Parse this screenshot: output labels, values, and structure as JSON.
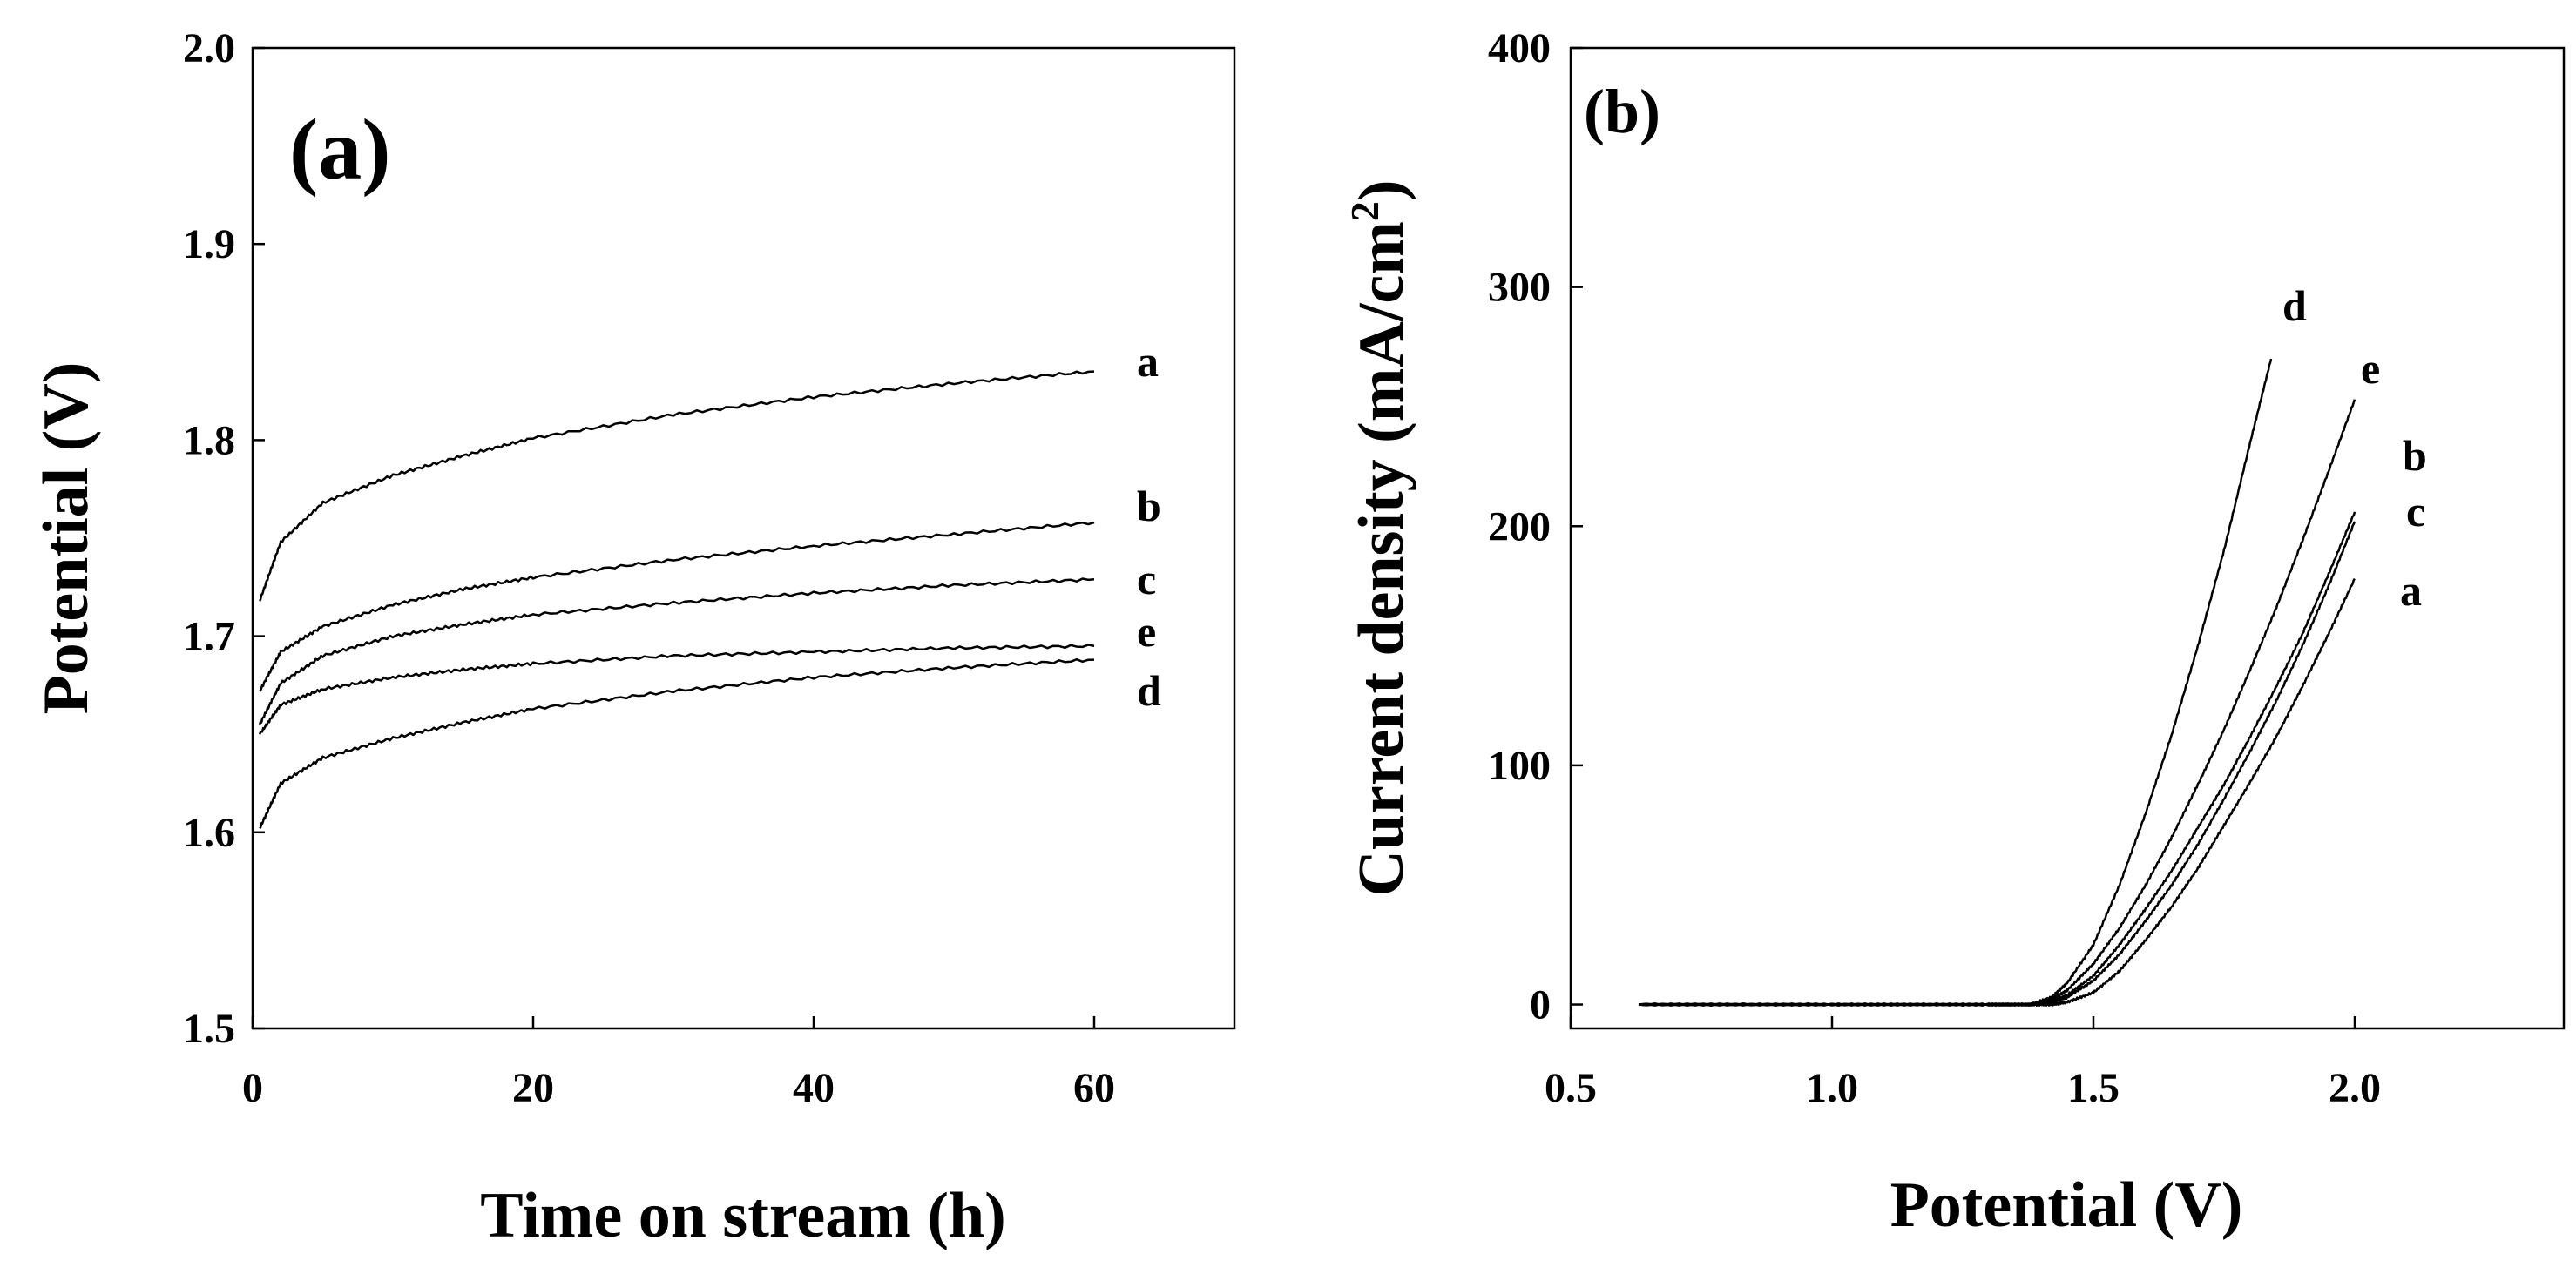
{
  "chart_data": [
    {
      "type": "line",
      "panel_label": "(a)",
      "xlabel": "Time on stream (h)",
      "ylabel": "Potential (V)",
      "xlim": [
        0,
        70
      ],
      "ylim": [
        1.5,
        2.0
      ],
      "xticks": [
        "0",
        "20",
        "40",
        "60"
      ],
      "yticks": [
        "1.5",
        "1.6",
        "1.7",
        "1.8",
        "1.9",
        "2.0"
      ],
      "series": [
        {
          "name": "a",
          "x": [
            0.5,
            2,
            5,
            10,
            15,
            20,
            30,
            40,
            50,
            60
          ],
          "y": [
            1.718,
            1.748,
            1.768,
            1.782,
            1.792,
            1.801,
            1.813,
            1.822,
            1.829,
            1.835
          ]
        },
        {
          "name": "b",
          "x": [
            0.5,
            2,
            5,
            10,
            15,
            20,
            30,
            40,
            50,
            60
          ],
          "y": [
            1.672,
            1.692,
            1.705,
            1.716,
            1.724,
            1.73,
            1.739,
            1.746,
            1.752,
            1.758
          ]
        },
        {
          "name": "c",
          "x": [
            0.5,
            2,
            5,
            10,
            15,
            20,
            30,
            40,
            50,
            60
          ],
          "y": [
            1.655,
            1.676,
            1.69,
            1.7,
            1.706,
            1.711,
            1.717,
            1.722,
            1.726,
            1.729
          ]
        },
        {
          "name": "e",
          "x": [
            0.5,
            2,
            5,
            10,
            15,
            20,
            30,
            40,
            50,
            60
          ],
          "y": [
            1.65,
            1.665,
            1.673,
            1.679,
            1.683,
            1.686,
            1.69,
            1.692,
            1.694,
            1.695
          ]
        },
        {
          "name": "d",
          "x": [
            0.5,
            2,
            5,
            10,
            15,
            20,
            30,
            40,
            50,
            60
          ],
          "y": [
            1.602,
            1.625,
            1.638,
            1.648,
            1.656,
            1.663,
            1.672,
            1.679,
            1.684,
            1.688
          ]
        }
      ]
    },
    {
      "type": "line",
      "panel_label": "(b)",
      "xlabel": "Potential (V)",
      "ylabel": "Current density (mA/cm",
      "ylabel_sup": "2",
      "ylabel_tail": ")",
      "xlim": [
        0.5,
        2.4
      ],
      "ylim": [
        -10,
        400
      ],
      "xticks": [
        "0.5",
        "1.0",
        "1.5",
        "2.0"
      ],
      "yticks": [
        "0",
        "100",
        "200",
        "300",
        "400"
      ],
      "series": [
        {
          "name": "d",
          "x": [
            0.63,
            1.0,
            1.3,
            1.38,
            1.42,
            1.45,
            1.5,
            1.55,
            1.6,
            1.65,
            1.7,
            1.75,
            1.8,
            1.84
          ],
          "y": [
            0,
            0,
            0,
            0,
            3,
            9,
            25,
            50,
            80,
            113,
            150,
            190,
            235,
            270
          ]
        },
        {
          "name": "e",
          "x": [
            0.63,
            1.0,
            1.3,
            1.38,
            1.42,
            1.45,
            1.5,
            1.55,
            1.6,
            1.65,
            1.7,
            1.75,
            1.8,
            1.85,
            1.9,
            1.95,
            2.0
          ],
          "y": [
            0,
            0,
            0,
            0,
            2,
            6,
            17,
            32,
            50,
            70,
            92,
            115,
            140,
            166,
            194,
            223,
            253
          ]
        },
        {
          "name": "b",
          "x": [
            0.63,
            1.0,
            1.3,
            1.38,
            1.42,
            1.45,
            1.5,
            1.55,
            1.6,
            1.65,
            1.7,
            1.75,
            1.8,
            1.85,
            1.9,
            1.95,
            2.0
          ],
          "y": [
            0,
            0,
            0,
            0,
            1,
            4,
            12,
            25,
            40,
            56,
            74,
            92,
            112,
            133,
            155,
            180,
            206
          ]
        },
        {
          "name": "c",
          "x": [
            0.63,
            1.0,
            1.3,
            1.38,
            1.42,
            1.45,
            1.5,
            1.55,
            1.6,
            1.65,
            1.7,
            1.75,
            1.8,
            1.85,
            1.9,
            1.95,
            2.0
          ],
          "y": [
            0,
            0,
            0,
            0,
            1,
            3,
            10,
            21,
            35,
            50,
            67,
            86,
            106,
            127,
            150,
            175,
            202
          ]
        },
        {
          "name": "a",
          "x": [
            0.63,
            1.0,
            1.3,
            1.38,
            1.42,
            1.45,
            1.5,
            1.55,
            1.6,
            1.65,
            1.7,
            1.75,
            1.8,
            1.85,
            1.9,
            1.95,
            2.0
          ],
          "y": [
            0,
            0,
            0,
            0,
            0,
            1,
            5,
            14,
            27,
            41,
            57,
            75,
            93,
            112,
            133,
            155,
            178
          ]
        }
      ]
    }
  ]
}
